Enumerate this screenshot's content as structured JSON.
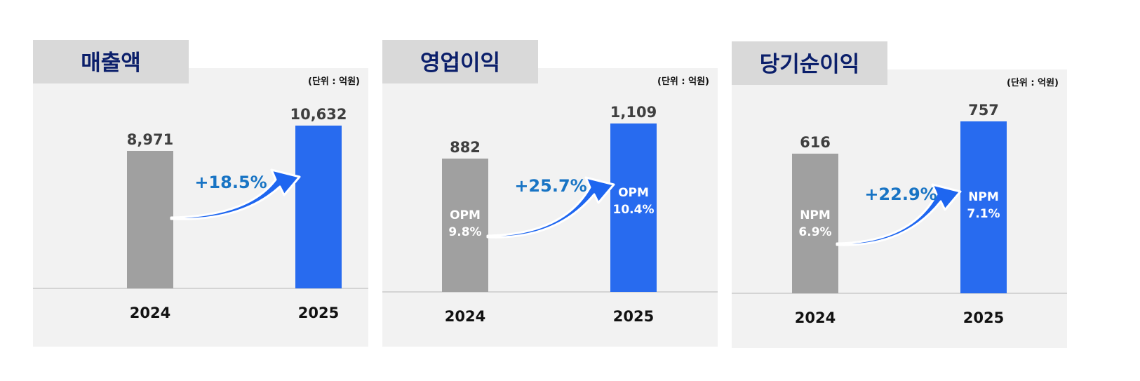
{
  "unit_text": "(단위 : 억원)",
  "chart_data": [
    {
      "type": "bar",
      "title": "매출액",
      "unit": "(단위 : 억원)",
      "categories": [
        "2024",
        "2025"
      ],
      "values": [
        8971,
        10632
      ],
      "value_labels": [
        "8,971",
        "10,632"
      ],
      "margin_labels": [
        null,
        null
      ],
      "growth": "+18.5%",
      "colors": [
        "#a0a0a0",
        "#286bef"
      ]
    },
    {
      "type": "bar",
      "title": "영업이익",
      "unit": "(단위 : 억원)",
      "categories": [
        "2024",
        "2025"
      ],
      "values": [
        882,
        1109
      ],
      "value_labels": [
        "882",
        "1,109"
      ],
      "margin_labels": [
        [
          "OPM",
          "9.8%"
        ],
        [
          "OPM",
          "10.4%"
        ]
      ],
      "growth": "+25.7%",
      "colors": [
        "#a0a0a0",
        "#286bef"
      ]
    },
    {
      "type": "bar",
      "title": "당기순이익",
      "unit": "(단위 : 억원)",
      "categories": [
        "2024",
        "2025"
      ],
      "values": [
        616,
        757
      ],
      "value_labels": [
        "616",
        "757"
      ],
      "margin_labels": [
        [
          "NPM",
          "6.9%"
        ],
        [
          "NPM",
          "7.1%"
        ]
      ],
      "growth": "+22.9%",
      "colors": [
        "#a0a0a0",
        "#286bef"
      ]
    }
  ]
}
